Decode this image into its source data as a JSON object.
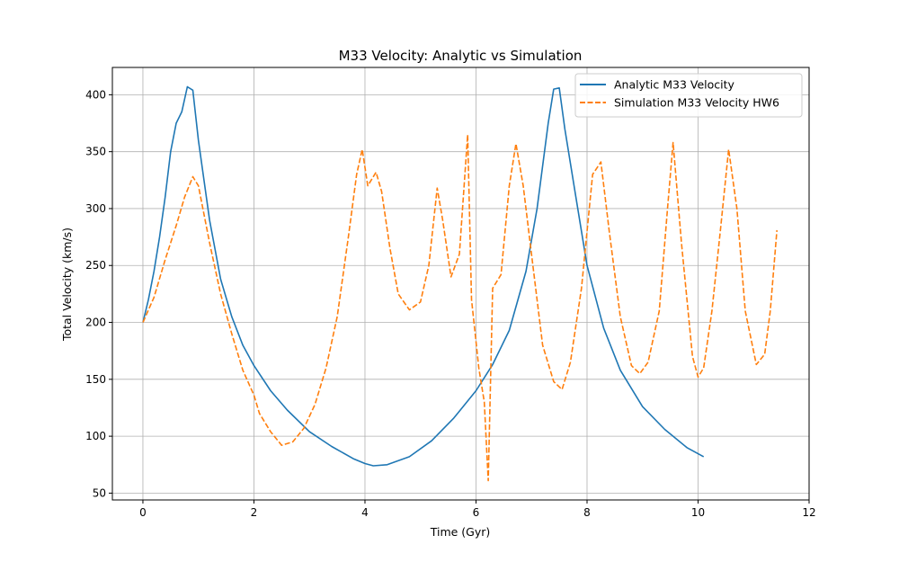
{
  "chart_data": {
    "type": "line",
    "title": "M33 Velocity: Analytic vs Simulation",
    "xlabel": "Time (Gyr)",
    "ylabel": "Total Velocity (km/s)",
    "xlim": [
      -0.55,
      12.0
    ],
    "ylim": [
      44,
      424
    ],
    "xticks": [
      0,
      2,
      4,
      6,
      8,
      10,
      12
    ],
    "yticks": [
      50,
      100,
      150,
      200,
      250,
      300,
      350,
      400
    ],
    "grid": true,
    "legend_position": "top-right",
    "series": [
      {
        "name": "Analytic M33 Velocity",
        "color": "#1f77b4",
        "style": "solid",
        "x": [
          0,
          0.1,
          0.2,
          0.3,
          0.4,
          0.5,
          0.6,
          0.7,
          0.8,
          0.9,
          1.0,
          1.2,
          1.4,
          1.6,
          1.8,
          2.0,
          2.3,
          2.6,
          3.0,
          3.4,
          3.8,
          4.0,
          4.15,
          4.4,
          4.8,
          5.2,
          5.6,
          6.0,
          6.3,
          6.6,
          6.9,
          7.1,
          7.3,
          7.4,
          7.5,
          7.6,
          7.8,
          8.0,
          8.3,
          8.6,
          9.0,
          9.4,
          9.8,
          10.1
        ],
        "y": [
          200,
          220,
          245,
          275,
          310,
          350,
          375,
          385,
          407,
          404,
          360,
          290,
          238,
          205,
          180,
          162,
          140,
          123,
          104,
          91,
          80,
          76,
          74,
          75,
          82,
          96,
          116,
          140,
          163,
          193,
          245,
          300,
          375,
          405,
          406,
          370,
          310,
          250,
          195,
          158,
          126,
          106,
          90,
          82
        ]
      },
      {
        "name": "Simulation M33 Velocity HW6",
        "color": "#ff7f0e",
        "style": "dashed",
        "x": [
          0,
          0.2,
          0.4,
          0.6,
          0.75,
          0.9,
          1.0,
          1.2,
          1.4,
          1.6,
          1.8,
          2.0,
          2.1,
          2.3,
          2.5,
          2.7,
          2.9,
          3.1,
          3.3,
          3.5,
          3.7,
          3.85,
          3.95,
          4.05,
          4.2,
          4.3,
          4.45,
          4.6,
          4.8,
          5.0,
          5.15,
          5.3,
          5.4,
          5.55,
          5.7,
          5.85,
          5.92,
          6.05,
          6.15,
          6.22,
          6.3,
          6.45,
          6.6,
          6.72,
          6.85,
          7.0,
          7.2,
          7.4,
          7.55,
          7.7,
          7.9,
          8.1,
          8.25,
          8.4,
          8.6,
          8.8,
          8.95,
          9.1,
          9.3,
          9.45,
          9.55,
          9.7,
          9.9,
          10.0,
          10.1,
          10.25,
          10.4,
          10.55,
          10.7,
          10.85,
          11.05,
          11.2,
          11.3,
          11.42
        ],
        "y": [
          200,
          222,
          255,
          285,
          310,
          328,
          320,
          270,
          225,
          190,
          158,
          136,
          120,
          104,
          92,
          95,
          107,
          128,
          160,
          205,
          275,
          330,
          352,
          320,
          332,
          315,
          265,
          225,
          211,
          218,
          250,
          318,
          290,
          240,
          260,
          365,
          220,
          160,
          130,
          61,
          230,
          242,
          320,
          357,
          320,
          260,
          180,
          148,
          141,
          165,
          230,
          330,
          341,
          280,
          205,
          162,
          155,
          165,
          210,
          300,
          358,
          270,
          170,
          152,
          160,
          210,
          280,
          352,
          300,
          210,
          163,
          172,
          210,
          281
        ]
      }
    ]
  }
}
